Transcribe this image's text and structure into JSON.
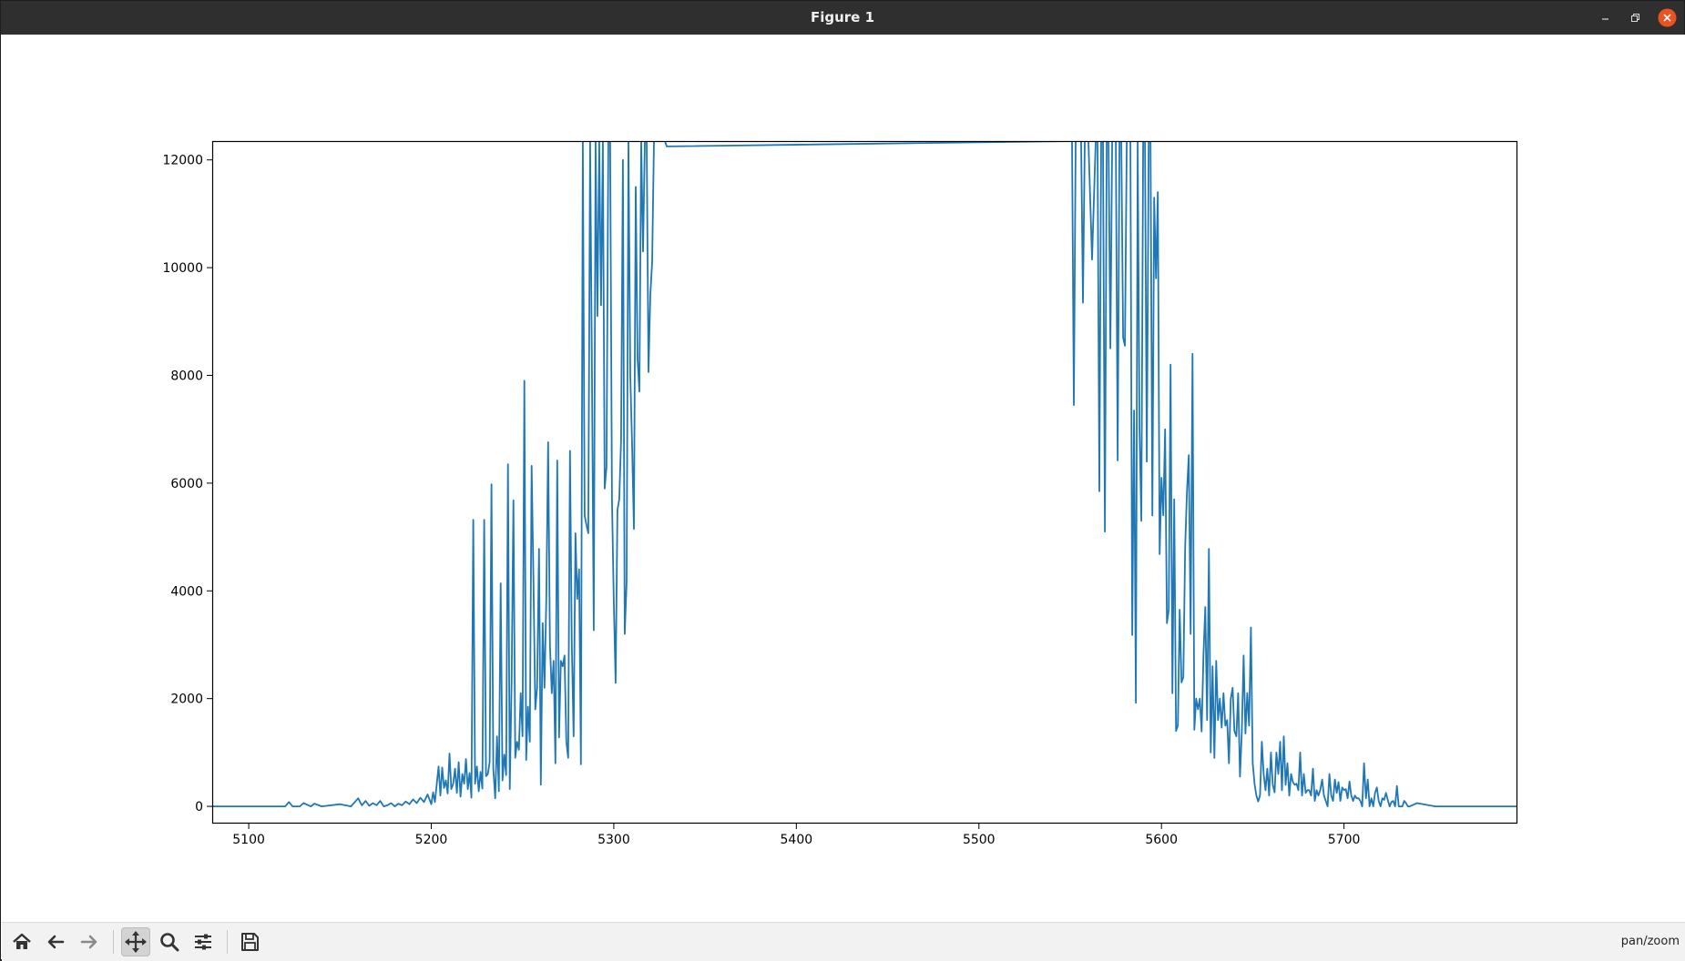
{
  "window": {
    "title": "Figure 1"
  },
  "toolbar": {
    "items": [
      {
        "name": "home-icon",
        "label": "Home"
      },
      {
        "name": "back-icon",
        "label": "Back"
      },
      {
        "name": "forward-icon",
        "label": "Forward"
      },
      {
        "name": "pan-icon",
        "label": "Pan"
      },
      {
        "name": "zoom-icon",
        "label": "Zoom"
      },
      {
        "name": "configure-subplots-icon",
        "label": "Configure subplots"
      },
      {
        "name": "save-icon",
        "label": "Save"
      }
    ],
    "mode": "pan/zoom"
  },
  "colors": {
    "line": "#1f77b4",
    "titlebar": "#2f2f2f",
    "close": "#e95420"
  },
  "chart_data": {
    "type": "line",
    "title": "",
    "xlabel": "",
    "ylabel": "",
    "xlim": [
      5080,
      5795
    ],
    "ylim": [
      -320,
      12350
    ],
    "xticks": [
      5100,
      5200,
      5300,
      5400,
      5500,
      5600,
      5700
    ],
    "yticks": [
      0,
      2000,
      4000,
      6000,
      8000,
      10000,
      12000
    ],
    "grid": false,
    "legend": "none",
    "series": [
      {
        "x": [
          5080,
          5100,
          5120,
          5122,
          5124,
          5128,
          5130,
          5134,
          5136,
          5140,
          5150,
          5156,
          5160,
          5162,
          5164,
          5166,
          5168,
          5170,
          5172,
          5174,
          5176,
          5178,
          5180,
          5182,
          5184,
          5186,
          5188,
          5190,
          5192,
          5194,
          5196,
          5198,
          5200,
          5201,
          5202,
          5204,
          5205,
          5206,
          5207,
          5208,
          5209,
          5210,
          5211,
          5212,
          5213,
          5214,
          5215,
          5216,
          5217,
          5218,
          5219,
          5220,
          5221,
          5222,
          5223,
          5224,
          5225,
          5226,
          5227,
          5228,
          5229,
          5230,
          5231,
          5232,
          5233,
          5234,
          5235,
          5236,
          5237,
          5238,
          5239,
          5240,
          5241,
          5242,
          5243,
          5244,
          5245,
          5246,
          5247,
          5248,
          5249,
          5250,
          5251,
          5252,
          5253,
          5254,
          5255,
          5256,
          5257,
          5258,
          5259,
          5260,
          5261,
          5262,
          5263,
          5264,
          5265,
          5266,
          5267,
          5268,
          5269,
          5270,
          5271,
          5272,
          5273,
          5274,
          5275,
          5276,
          5277,
          5278,
          5279,
          5280,
          5281,
          5282,
          5283,
          5284,
          5285,
          5286,
          5287,
          5288,
          5289,
          5290,
          5291,
          5292,
          5293,
          5294,
          5295,
          5296,
          5297,
          5298,
          5299,
          5300,
          5301,
          5302,
          5303,
          5304,
          5305,
          5306,
          5307,
          5308,
          5309,
          5310,
          5311,
          5312,
          5313,
          5314,
          5315,
          5316,
          5317,
          5318,
          5319,
          5320,
          5321,
          5322,
          5328,
          5329,
          5551,
          5552,
          5553,
          5556,
          5557,
          5558,
          5560,
          5562,
          5564,
          5565,
          5566,
          5567,
          5568,
          5569,
          5570,
          5571,
          5572,
          5573,
          5574,
          5575,
          5576,
          5577,
          5578,
          5579,
          5580,
          5581,
          5582,
          5583,
          5584,
          5585,
          5586,
          5587,
          5588,
          5589,
          5590,
          5591,
          5592,
          5593,
          5594,
          5595,
          5596,
          5597,
          5598,
          5599,
          5600,
          5601,
          5602,
          5603,
          5604,
          5605,
          5606,
          5607,
          5608,
          5609,
          5610,
          5611,
          5612,
          5613,
          5614,
          5615,
          5616,
          5617,
          5618,
          5619,
          5620,
          5621,
          5622,
          5623,
          5624,
          5625,
          5626,
          5627,
          5628,
          5629,
          5630,
          5631,
          5632,
          5633,
          5634,
          5635,
          5636,
          5637,
          5638,
          5639,
          5640,
          5641,
          5642,
          5643,
          5644,
          5645,
          5646,
          5647,
          5648,
          5649,
          5650,
          5651,
          5652,
          5653,
          5654,
          5655,
          5656,
          5657,
          5658,
          5659,
          5660,
          5661,
          5662,
          5663,
          5664,
          5665,
          5666,
          5667,
          5668,
          5669,
          5670,
          5671,
          5672,
          5673,
          5674,
          5675,
          5676,
          5677,
          5678,
          5679,
          5680,
          5681,
          5682,
          5683,
          5684,
          5685,
          5686,
          5687,
          5688,
          5689,
          5690,
          5691,
          5692,
          5693,
          5694,
          5695,
          5696,
          5697,
          5698,
          5699,
          5700,
          5701,
          5702,
          5703,
          5704,
          5705,
          5706,
          5707,
          5708,
          5709,
          5710,
          5711,
          5712,
          5713,
          5714,
          5715,
          5716,
          5717,
          5718,
          5719,
          5720,
          5721,
          5722,
          5723,
          5724,
          5725,
          5726,
          5727,
          5728,
          5729,
          5730,
          5731,
          5732,
          5733,
          5734,
          5735,
          5736,
          5740,
          5750,
          5760,
          5770,
          5780,
          5795
        ],
        "y": [
          0,
          0,
          0,
          80,
          0,
          0,
          60,
          0,
          50,
          0,
          40,
          0,
          150,
          20,
          100,
          10,
          60,
          20,
          100,
          0,
          20,
          60,
          0,
          50,
          20,
          90,
          40,
          130,
          60,
          160,
          80,
          220,
          40,
          260,
          80,
          740,
          200,
          720,
          340,
          480,
          240,
          980,
          320,
          420,
          700,
          250,
          820,
          180,
          600,
          420,
          880,
          320,
          620,
          160,
          5320,
          420,
          740,
          280,
          640,
          330,
          5320,
          560,
          600,
          820,
          5980,
          700,
          150,
          1300,
          280,
          4140,
          480,
          960,
          580,
          6350,
          320,
          2300,
          5680,
          900,
          1200,
          1050,
          2100,
          1300,
          7900,
          860,
          1850,
          1200,
          6320,
          4200,
          1800,
          2200,
          4780,
          400,
          3400,
          2200,
          3860,
          6760,
          3000,
          2100,
          2700,
          800,
          6420,
          1280,
          2700,
          2600,
          2800,
          1200,
          900,
          6600,
          3000,
          1300,
          5070,
          3850,
          4400,
          780,
          12350,
          5400,
          5220,
          5070,
          12350,
          8130,
          3270,
          12350,
          9100,
          12350,
          9300,
          12350,
          5900,
          6300,
          12350,
          12350,
          5700,
          3800,
          2290,
          5500,
          5700,
          6800,
          12000,
          3200,
          4170,
          12350,
          8000,
          6700,
          5150,
          11500,
          8300,
          7700,
          12350,
          10300,
          12350,
          12350,
          8060,
          9500,
          10100,
          12350,
          12350,
          12250,
          12350,
          7450,
          12350,
          12350,
          9350,
          12350,
          12350,
          10150,
          12350,
          12350,
          5850,
          12350,
          12350,
          5100,
          12350,
          12350,
          8500,
          12350,
          12350,
          12350,
          6420,
          12350,
          12350,
          8700,
          8550,
          12350,
          12350,
          12350,
          3180,
          7350,
          1920,
          12350,
          7000,
          5300,
          12350,
          12350,
          6400,
          12350,
          12350,
          5400,
          11300,
          9800,
          11400,
          4680,
          6100,
          5400,
          7000,
          3400,
          3650,
          8200,
          2100,
          5700,
          1400,
          1500,
          3650,
          2300,
          2400,
          4800,
          5850,
          6520,
          3200,
          8400,
          1420,
          2000,
          1800,
          2000,
          1390,
          2800,
          3700,
          1600,
          4780,
          1000,
          2600,
          900,
          2700,
          1600,
          2000,
          1460,
          2100,
          1500,
          1600,
          800,
          2000,
          2200,
          1400,
          1300,
          2100,
          550,
          1380,
          2800,
          1350,
          2100,
          1500,
          3320,
          800,
          420,
          200,
          90,
          200,
          1200,
          600,
          300,
          700,
          200,
          1000,
          400,
          260,
          1000,
          600,
          1200,
          300,
          1300,
          400,
          800,
          200,
          600,
          450,
          400,
          420,
          300,
          1000,
          200,
          600,
          250,
          300,
          300,
          200,
          700,
          100,
          300,
          200,
          300,
          500,
          200,
          100,
          0,
          600,
          200,
          100,
          500,
          250,
          450,
          100,
          350,
          300,
          320,
          150,
          460,
          200,
          100,
          200,
          150,
          150,
          100,
          0,
          800,
          150,
          500,
          0,
          150,
          0,
          250,
          350,
          100,
          0,
          150,
          120,
          250,
          120,
          0,
          80,
          100,
          0,
          380,
          0,
          0,
          0,
          100,
          60,
          0,
          0,
          60,
          0,
          0,
          0,
          0,
          0
        ]
      }
    ]
  }
}
